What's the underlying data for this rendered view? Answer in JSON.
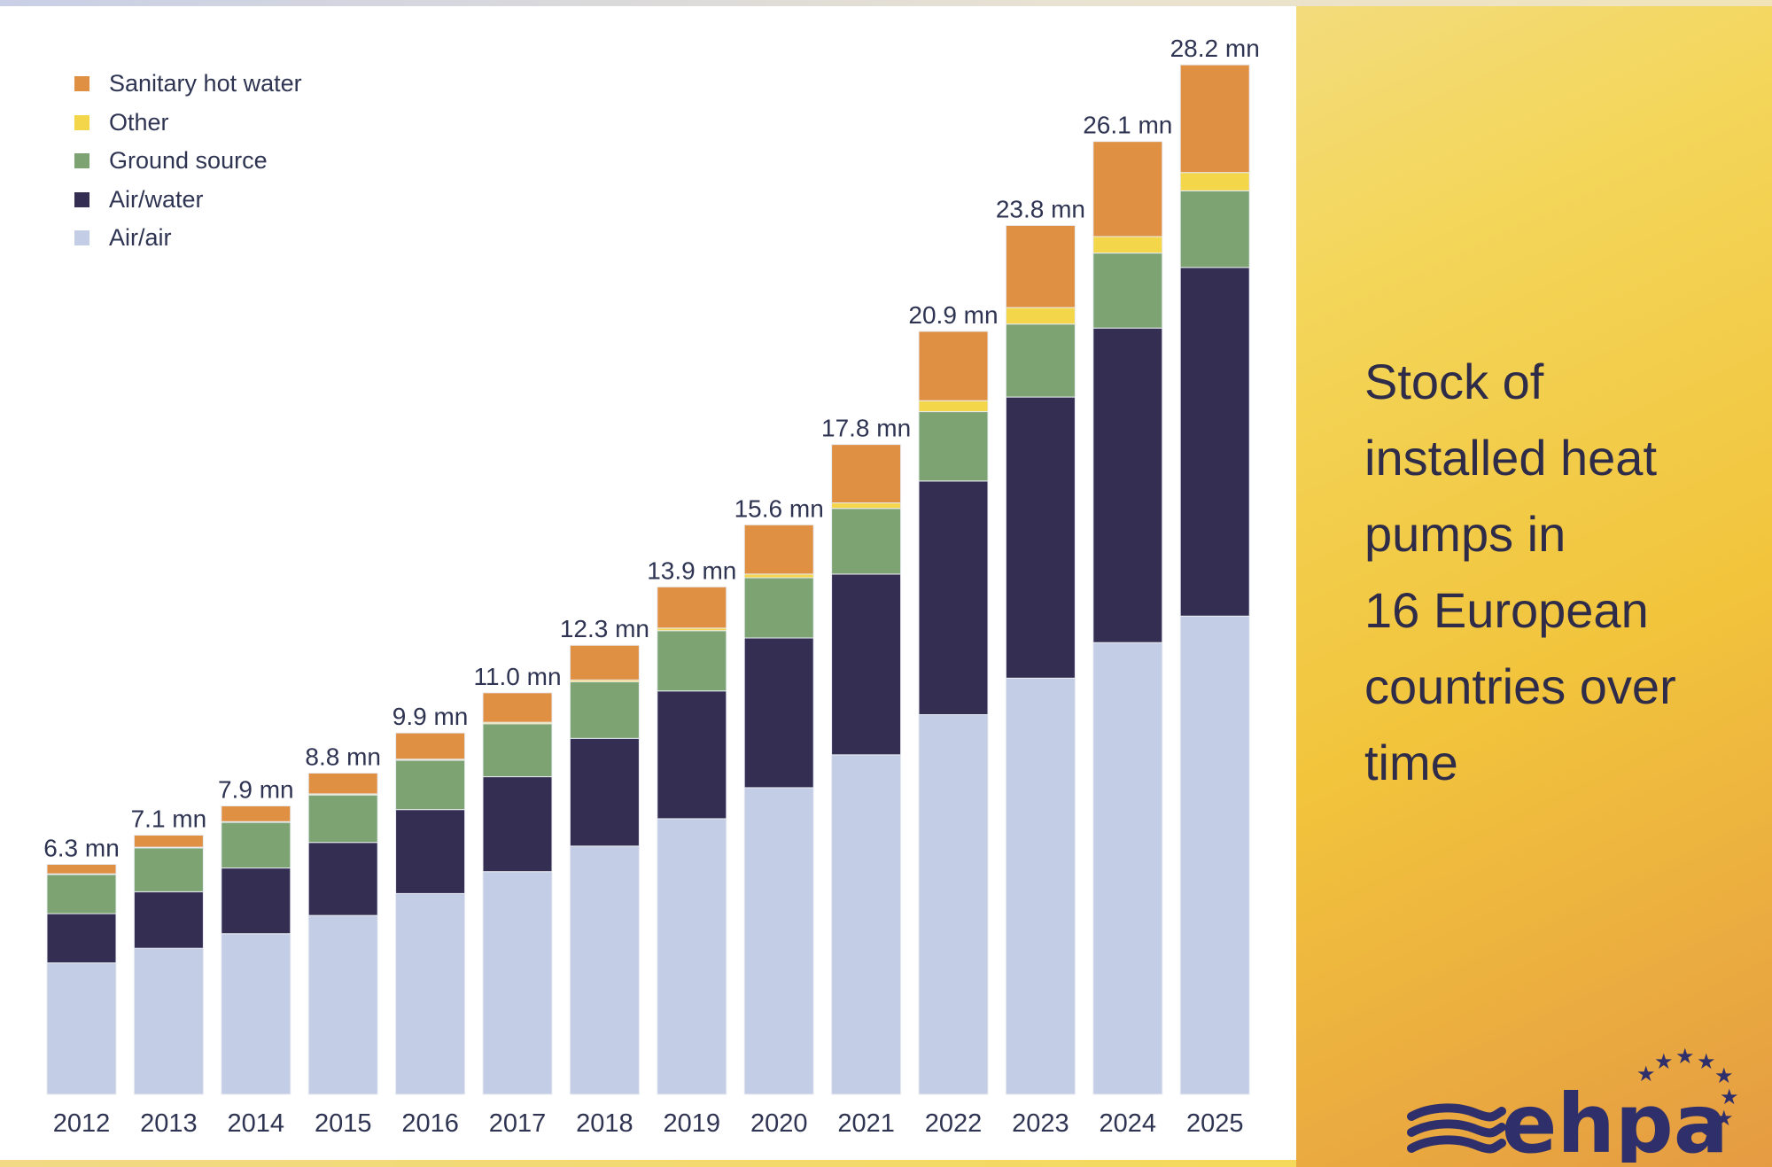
{
  "side_title": "Stock of installed heat pumps in 16 European countries over time",
  "side_title_lines": [
    "Stock of",
    "installed heat",
    "pumps in",
    "16 European",
    "countries over",
    "time"
  ],
  "logo": {
    "name": "ehpa",
    "icon": "ehpa-logo-waves-stars"
  },
  "colors": {
    "sanitary_hot_water": "#df9043",
    "other": "#f4d64a",
    "ground_source": "#7da373",
    "air_water": "#332e52",
    "air_air": "#c3cde5",
    "text": "#2e3452",
    "background_gradient_accent": "#f3d65a"
  },
  "chart_data": {
    "type": "bar",
    "stacked": true,
    "title": "Stock of installed heat pumps in 16 European countries over time",
    "xlabel": "",
    "ylabel": "",
    "units": "million units",
    "ylim": [
      0,
      30
    ],
    "grid": false,
    "legend_position": "top-left",
    "categories": [
      "2012",
      "2013",
      "2014",
      "2015",
      "2016",
      "2017",
      "2018",
      "2019",
      "2020",
      "2021",
      "2022",
      "2023",
      "2024",
      "2025"
    ],
    "series": [
      {
        "name": "Air/air",
        "color": "#c3cde5",
        "values": [
          3.6,
          4.0,
          4.4,
          4.9,
          5.5,
          6.1,
          6.8,
          7.55,
          8.4,
          9.3,
          10.4,
          11.4,
          12.35,
          13.1
        ]
      },
      {
        "name": "Air/water",
        "color": "#332e52",
        "values": [
          1.35,
          1.55,
          1.8,
          2.0,
          2.3,
          2.6,
          2.95,
          3.5,
          4.1,
          4.95,
          6.4,
          7.7,
          8.6,
          9.55
        ]
      },
      {
        "name": "Ground source",
        "color": "#7da373",
        "values": [
          1.07,
          1.2,
          1.25,
          1.3,
          1.35,
          1.45,
          1.55,
          1.65,
          1.65,
          1.8,
          1.9,
          2.0,
          2.05,
          2.1
        ]
      },
      {
        "name": "Other",
        "color": "#f4d64a",
        "values": [
          0.02,
          0.02,
          0.02,
          0.03,
          0.03,
          0.04,
          0.05,
          0.07,
          0.1,
          0.15,
          0.3,
          0.45,
          0.45,
          0.5
        ]
      },
      {
        "name": "Sanitary hot water",
        "color": "#df9043",
        "values": [
          0.26,
          0.33,
          0.43,
          0.57,
          0.72,
          0.81,
          0.95,
          1.13,
          1.35,
          1.6,
          1.9,
          2.25,
          2.6,
          2.95
        ]
      }
    ],
    "totals": [
      6.3,
      7.1,
      7.9,
      8.8,
      9.9,
      11.0,
      12.3,
      13.9,
      15.6,
      17.8,
      20.9,
      23.8,
      26.1,
      28.2
    ],
    "total_labels": [
      "6.3 mn",
      "7.1 mn",
      "7.9 mn",
      "8.8 mn",
      "9.9 mn",
      "11.0 mn",
      "12.3 mn",
      "13.9 mn",
      "15.6 mn",
      "17.8 mn",
      "20.9 mn",
      "23.8 mn",
      "26.1 mn",
      "28.2 mn"
    ],
    "legend": [
      "Sanitary hot water",
      "Other",
      "Ground source",
      "Air/water",
      "Air/air"
    ]
  }
}
